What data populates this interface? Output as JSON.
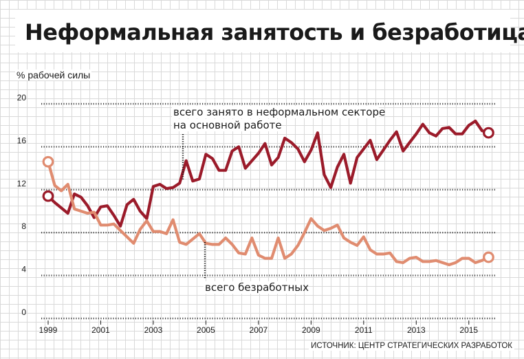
{
  "chart_data": {
    "type": "line",
    "title": "Неформальная занятость и безработица",
    "ylabel": "% рабочей силы",
    "source": "ИСТОЧНИК: ЦЕНТР СТРАТЕГИЧЕСКИХ РАЗРАБОТОК",
    "ylim": [
      0,
      20
    ],
    "yticks": [
      0,
      4,
      8,
      12,
      16,
      20
    ],
    "xlim": [
      1999.0,
      2016.0
    ],
    "xticks": [
      "1999",
      "2001",
      "2003",
      "2005",
      "2007",
      "2009",
      "2011",
      "2013",
      "2015"
    ],
    "grid": true,
    "colors": {
      "informal": "#9b1b2a",
      "unemployed": "#e08c70"
    },
    "series": [
      {
        "name": "всего занято в неформальном секторе на основной работе",
        "x": [
          1999.0,
          1999.25,
          1999.5,
          1999.75,
          2000.0,
          2000.25,
          2000.5,
          2000.75,
          2001.0,
          2001.25,
          2001.5,
          2001.75,
          2002.0,
          2002.25,
          2002.5,
          2002.75,
          2003.0,
          2003.25,
          2003.5,
          2003.75,
          2004.0,
          2004.25,
          2004.5,
          2004.75,
          2005.0,
          2005.25,
          2005.5,
          2005.75,
          2006.0,
          2006.25,
          2006.5,
          2006.75,
          2007.0,
          2007.25,
          2007.5,
          2007.75,
          2008.0,
          2008.25,
          2008.5,
          2008.75,
          2009.0,
          2009.25,
          2009.5,
          2009.75,
          2010.0,
          2010.25,
          2010.5,
          2010.75,
          2011.0,
          2011.25,
          2011.5,
          2011.75,
          2012.0,
          2012.25,
          2012.5,
          2012.75,
          2013.0,
          2013.25,
          2013.5,
          2013.75,
          2014.0,
          2014.25,
          2014.5,
          2014.75,
          2015.0,
          2015.25,
          2015.5,
          2015.75
        ],
        "values": [
          11.4,
          10.8,
          10.3,
          9.8,
          11.6,
          11.3,
          10.5,
          9.4,
          10.4,
          10.5,
          9.6,
          8.6,
          10.6,
          11.1,
          10.0,
          9.3,
          12.3,
          12.5,
          12.1,
          12.2,
          12.6,
          14.7,
          12.8,
          13.0,
          15.3,
          14.9,
          13.8,
          13.8,
          15.6,
          16.0,
          14.0,
          14.7,
          15.4,
          16.3,
          14.3,
          15.0,
          16.8,
          16.4,
          15.8,
          14.6,
          15.7,
          17.3,
          13.4,
          12.2,
          14.1,
          15.3,
          12.6,
          15.0,
          15.8,
          16.6,
          14.8,
          15.7,
          16.6,
          17.4,
          15.6,
          16.4,
          17.2,
          18.1,
          17.3,
          17.0,
          17.7,
          17.8,
          17.2,
          17.2,
          18.0,
          18.4,
          17.5,
          17.3
        ]
      },
      {
        "name": "всего безработных",
        "x": [
          1999.0,
          1999.25,
          1999.5,
          1999.75,
          2000.0,
          2000.25,
          2000.5,
          2000.75,
          2001.0,
          2001.25,
          2001.5,
          2001.75,
          2002.0,
          2002.25,
          2002.5,
          2002.75,
          2003.0,
          2003.25,
          2003.5,
          2003.75,
          2004.0,
          2004.25,
          2004.5,
          2004.75,
          2005.0,
          2005.25,
          2005.5,
          2005.75,
          2006.0,
          2006.25,
          2006.5,
          2006.75,
          2007.0,
          2007.25,
          2007.5,
          2007.75,
          2008.0,
          2008.25,
          2008.5,
          2008.75,
          2009.0,
          2009.25,
          2009.5,
          2009.75,
          2010.0,
          2010.25,
          2010.5,
          2010.75,
          2011.0,
          2011.25,
          2011.5,
          2011.75,
          2012.0,
          2012.25,
          2012.5,
          2012.75,
          2013.0,
          2013.25,
          2013.5,
          2013.75,
          2014.0,
          2014.25,
          2014.5,
          2014.75,
          2015.0,
          2015.25,
          2015.5,
          2015.75
        ],
        "values": [
          14.6,
          12.4,
          11.9,
          12.5,
          10.2,
          10.0,
          9.8,
          9.9,
          8.7,
          8.7,
          8.8,
          8.2,
          7.6,
          7.0,
          8.3,
          9.1,
          8.1,
          8.1,
          7.9,
          9.2,
          7.1,
          6.9,
          7.4,
          7.9,
          7.0,
          6.9,
          6.9,
          7.5,
          6.9,
          6.1,
          6.0,
          7.5,
          5.9,
          5.6,
          5.6,
          7.5,
          5.6,
          6.0,
          6.8,
          8.0,
          9.3,
          8.6,
          8.2,
          8.4,
          8.7,
          7.5,
          7.1,
          6.8,
          7.6,
          6.4,
          6.0,
          6.0,
          6.1,
          5.3,
          5.2,
          5.6,
          5.7,
          5.3,
          5.3,
          5.4,
          5.2,
          5.0,
          5.2,
          5.6,
          5.6,
          5.2,
          5.4,
          5.7
        ]
      }
    ],
    "annotations": [
      {
        "series": 0,
        "lines": [
          "всего занято в неформальном секторе",
          "на основной работе"
        ]
      },
      {
        "series": 1,
        "lines": [
          "всего безработных"
        ]
      }
    ]
  }
}
